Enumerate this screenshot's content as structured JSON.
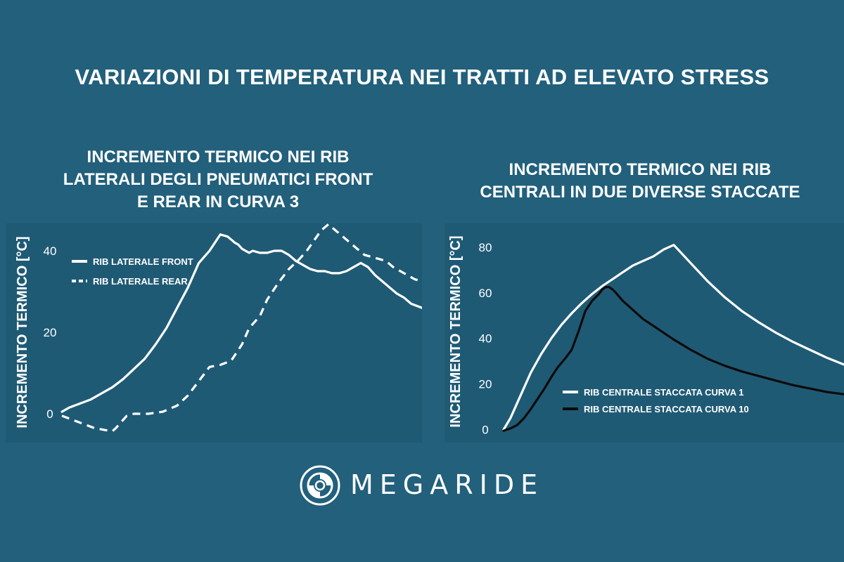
{
  "title": "VARIAZIONI DI TEMPERATURA NEI TRATTI AD ELEVATO STRESS",
  "brand": "MEGARIDE",
  "colors": {
    "background": "#22607c",
    "white": "#ffffff",
    "black": "#0b0b0b"
  },
  "chart_data": [
    {
      "type": "line",
      "title": "INCREMENTO TERMICO NEI RIB LATERALI DEGLI PNEUMATICI FRONT E REAR IN CURVA 3",
      "title_lines": [
        "INCREMENTO TERMICO NEI RIB",
        "LATERALI DEGLI PNEUMATICI FRONT",
        "E REAR IN CURVA 3"
      ],
      "ylabel": "INCREMENTO TERMICO [°C]",
      "xlabel": "",
      "ylim": [
        -5,
        45
      ],
      "xlim": [
        0,
        100
      ],
      "yticks": [
        0,
        20,
        40
      ],
      "grid": false,
      "legend_position": "top-left",
      "series": [
        {
          "name": "RIB LATERALE FRONT",
          "color": "#ffffff",
          "dash": "solid",
          "x": [
            0,
            2,
            5,
            8,
            11,
            14,
            17,
            20,
            23,
            26,
            29,
            32,
            35,
            38,
            41,
            44,
            46,
            48,
            49,
            50,
            51,
            52,
            53,
            55,
            57,
            59,
            61,
            63,
            65,
            67,
            69,
            71,
            73,
            75,
            77,
            79,
            81,
            83,
            85,
            87,
            89,
            91,
            93,
            95,
            97,
            100
          ],
          "y": [
            0.5,
            1.5,
            2.5,
            3.5,
            5,
            6.5,
            8.5,
            11,
            13.5,
            17,
            21,
            26,
            31,
            37,
            40,
            44,
            43.5,
            42,
            41.5,
            40.5,
            40,
            39.5,
            40,
            39.5,
            39.5,
            40,
            40,
            39,
            37.5,
            36.5,
            35.5,
            35,
            35,
            34.5,
            34.5,
            35,
            36,
            37,
            36,
            34,
            32.5,
            31,
            29.5,
            28.5,
            27,
            26
          ]
        },
        {
          "name": "RIB LATERALE REAR",
          "color": "#ffffff",
          "dash": "dashed",
          "x": [
            0,
            3,
            6,
            9,
            12,
            14,
            15,
            16,
            18,
            20,
            24,
            28,
            32,
            35,
            38,
            41,
            44,
            47,
            50,
            52,
            55,
            57,
            60,
            63,
            66,
            68,
            70,
            72,
            74,
            76,
            78,
            80,
            82,
            84,
            86,
            88,
            90,
            92,
            94,
            96,
            98,
            100
          ],
          "y": [
            -0.5,
            -1.5,
            -2.5,
            -3.5,
            -4,
            -4.3,
            -3.5,
            -2.5,
            -0.5,
            0,
            0,
            0.5,
            2,
            4.5,
            8,
            11.5,
            12,
            13,
            17,
            21,
            24,
            28,
            32,
            35.5,
            38,
            40,
            42.5,
            45,
            46.5,
            45,
            43.5,
            42,
            40.5,
            39,
            38.5,
            38,
            37.5,
            36,
            35,
            34,
            33,
            32.5
          ]
        }
      ]
    },
    {
      "type": "line",
      "title": "INCREMENTO TERMICO NEI RIB CENTRALI IN DUE DIVERSE STACCATE",
      "title_lines": [
        "INCREMENTO TERMICO NEI RIB",
        "CENTRALI IN DUE DIVERSE STACCATE"
      ],
      "ylabel": "INCREMENTO TERMICO [°C]",
      "xlabel": "",
      "ylim": [
        -2,
        88
      ],
      "xlim": [
        0,
        100
      ],
      "yticks": [
        0,
        20,
        40,
        60,
        80
      ],
      "grid": false,
      "legend_position": "bottom-center",
      "series": [
        {
          "name": "RIB CENTRALE STACCATA CURVA 1",
          "color": "#ffffff",
          "dash": "solid",
          "x": [
            0,
            2,
            5,
            8,
            11,
            14,
            17,
            20,
            23,
            26,
            29,
            32,
            35,
            38,
            41,
            44,
            47,
            50,
            55,
            60,
            65,
            70,
            75,
            80,
            85,
            90,
            95,
            100
          ],
          "y": [
            0,
            5,
            15,
            25,
            33,
            40,
            46,
            51,
            55.5,
            59.5,
            63,
            66,
            69,
            72,
            74,
            76,
            79,
            81,
            73,
            65,
            58,
            52,
            47,
            42.5,
            38.5,
            35,
            31.5,
            28.5
          ]
        },
        {
          "name": "RIB CENTRALE STACCATA CURVA 10",
          "color": "#0b0b0b",
          "dash": "solid",
          "x": [
            0,
            2,
            4,
            6,
            8,
            10,
            12,
            14,
            16,
            18,
            20,
            22,
            24,
            26,
            28,
            29,
            30,
            31,
            32,
            33,
            35,
            38,
            41,
            45,
            50,
            55,
            60,
            65,
            70,
            75,
            80,
            85,
            90,
            95,
            100
          ],
          "y": [
            -0.5,
            0.5,
            2,
            5,
            9,
            13.5,
            18,
            23,
            27.5,
            31,
            35,
            43,
            52,
            56.5,
            59.5,
            61.5,
            62.5,
            62.5,
            61.5,
            60,
            56.5,
            52.5,
            48.5,
            44.5,
            39.5,
            35,
            31,
            28,
            25.5,
            23.5,
            21.5,
            19.5,
            18,
            16.5,
            15.5
          ]
        }
      ]
    }
  ]
}
